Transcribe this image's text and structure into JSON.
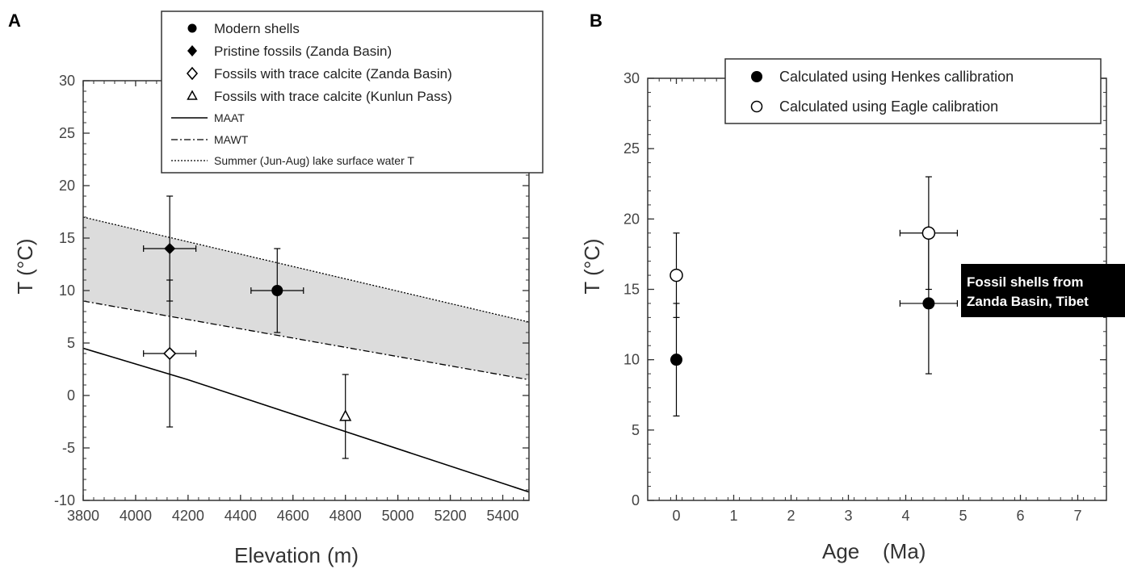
{
  "panel_labels": {
    "a": "A",
    "b": "B"
  },
  "chart_data": [
    {
      "type": "scatter",
      "panel": "A",
      "xlabel": "Elevation (m)",
      "ylabel": "T (°C)",
      "xlim": [
        3800,
        5500
      ],
      "ylim": [
        -10,
        30
      ],
      "xticks": [
        3800,
        4000,
        4200,
        4400,
        4600,
        4800,
        5000,
        5200,
        5400
      ],
      "yticks": [
        -10,
        -5,
        0,
        5,
        10,
        15,
        20,
        25,
        30
      ],
      "grid": false,
      "legend_position": "top-center",
      "series": [
        {
          "name": "Modern shells",
          "marker": "filled-circle",
          "points": [
            {
              "x": 4540,
              "y": 10,
              "xerr": 100,
              "yerr": 4
            }
          ]
        },
        {
          "name": "Pristine fossils (Zanda Basin)",
          "marker": "filled-diamond",
          "points": [
            {
              "x": 4130,
              "y": 14,
              "xerr": 100,
              "yerr": 5
            }
          ]
        },
        {
          "name": "Fossils with trace calcite (Zanda Basin)",
          "marker": "open-diamond",
          "points": [
            {
              "x": 4130,
              "y": 4,
              "xerr": 100,
              "yerr": 7
            }
          ]
        },
        {
          "name": "Fossils with trace calcite (Kunlun Pass)",
          "marker": "open-triangle",
          "points": [
            {
              "x": 4800,
              "y": -2,
              "xerr": 0,
              "yerr": 4
            }
          ]
        }
      ],
      "lines": [
        {
          "name": "MAAT",
          "style": "solid",
          "x": [
            3800,
            4200,
            5500
          ],
          "y": [
            4.5,
            1.5,
            -9.2
          ]
        },
        {
          "name": "MAWT",
          "style": "dash-dot",
          "x": [
            3800,
            5500
          ],
          "y": [
            9,
            1.5
          ]
        },
        {
          "name": "Summer (Jun-Aug) lake surface water T",
          "style": "dotted",
          "x": [
            3800,
            5500
          ],
          "y": [
            17,
            7
          ]
        }
      ],
      "shaded_band": {
        "between": [
          "MAWT",
          "Summer (Jun-Aug) lake surface water T"
        ],
        "color": "#dcdcdc"
      }
    },
    {
      "type": "scatter",
      "panel": "B",
      "xlabel": "Age (Ma)",
      "ylabel": "T (°C)",
      "xlim": [
        -0.5,
        7.5
      ],
      "ylim": [
        0,
        30
      ],
      "xticks": [
        0,
        1,
        2,
        3,
        4,
        5,
        6,
        7
      ],
      "yticks": [
        0,
        5,
        10,
        15,
        20,
        25,
        30
      ],
      "grid": false,
      "legend_position": "top-right",
      "annotation": "Fossil shells from Zanda Basin, Tibet",
      "series": [
        {
          "name": "Calculated using Henkes callibration",
          "marker": "filled-circle",
          "points": [
            {
              "x": 0,
              "y": 10,
              "xerr": 0,
              "yerr": 4
            },
            {
              "x": 4.4,
              "y": 14,
              "xerr": 0.5,
              "yerr": 5
            }
          ]
        },
        {
          "name": "Calculated using Eagle calibration",
          "marker": "open-circle",
          "points": [
            {
              "x": 0,
              "y": 16,
              "xerr": 0,
              "yerr": 3
            },
            {
              "x": 4.4,
              "y": 19,
              "xerr": 0.5,
              "yerr": 4
            }
          ]
        }
      ]
    }
  ],
  "text": {
    "a_xlabel_main": "Elevation",
    "a_xlabel_unit": "(m)",
    "a_ylabel": "T (°C)",
    "b_xlabel_main": "Age",
    "b_xlabel_unit": "(Ma)",
    "b_ylabel": "T (°C)",
    "b_annot_line1": "Fossil shells from",
    "b_annot_line2": "Zanda Basin, Tibet"
  }
}
